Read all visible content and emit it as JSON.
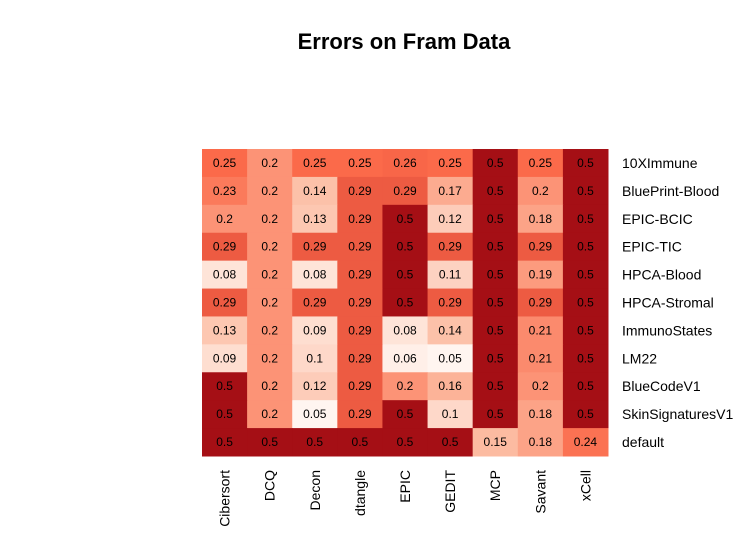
{
  "chart_data": {
    "type": "heatmap",
    "title": "Errors on Fram Data",
    "columns": [
      "Cibersort",
      "DCQ",
      "Decon",
      "dtangle",
      "EPIC",
      "GEDIT",
      "MCP",
      "Savant",
      "xCell"
    ],
    "rows": [
      "10XImmune",
      "BluePrint-Blood",
      "EPIC-BCIC",
      "EPIC-TIC",
      "HPCA-Blood",
      "HPCA-Stromal",
      "ImmunoStates",
      "LM22",
      "BlueCodeV1",
      "SkinSignaturesV1",
      "default"
    ],
    "values": [
      [
        0.25,
        0.2,
        0.25,
        0.25,
        0.26,
        0.25,
        0.5,
        0.25,
        0.5
      ],
      [
        0.23,
        0.2,
        0.14,
        0.29,
        0.29,
        0.17,
        0.5,
        0.2,
        0.5
      ],
      [
        0.2,
        0.2,
        0.13,
        0.29,
        0.5,
        0.12,
        0.5,
        0.18,
        0.5
      ],
      [
        0.29,
        0.2,
        0.29,
        0.29,
        0.5,
        0.29,
        0.5,
        0.29,
        0.5
      ],
      [
        0.08,
        0.2,
        0.08,
        0.29,
        0.5,
        0.11,
        0.5,
        0.19,
        0.5
      ],
      [
        0.29,
        0.2,
        0.29,
        0.29,
        0.5,
        0.29,
        0.5,
        0.29,
        0.5
      ],
      [
        0.13,
        0.2,
        0.09,
        0.29,
        0.08,
        0.14,
        0.5,
        0.21,
        0.5
      ],
      [
        0.09,
        0.2,
        0.1,
        0.29,
        0.06,
        0.05,
        0.5,
        0.21,
        0.5
      ],
      [
        0.5,
        0.2,
        0.12,
        0.29,
        0.2,
        0.16,
        0.5,
        0.2,
        0.5
      ],
      [
        0.5,
        0.2,
        0.05,
        0.29,
        0.5,
        0.1,
        0.5,
        0.18,
        0.5
      ],
      [
        0.5,
        0.5,
        0.5,
        0.5,
        0.5,
        0.5,
        0.15,
        0.18,
        0.24
      ]
    ],
    "value_labels": [
      [
        "0.25",
        "0.2",
        "0.25",
        "0.25",
        "0.26",
        "0.25",
        "0.5",
        "0.25",
        "0.5"
      ],
      [
        "0.23",
        "0.2",
        "0.14",
        "0.29",
        "0.29",
        "0.17",
        "0.5",
        "0.2",
        "0.5"
      ],
      [
        "0.2",
        "0.2",
        "0.13",
        "0.29",
        "0.5",
        "0.12",
        "0.5",
        "0.18",
        "0.5"
      ],
      [
        "0.29",
        "0.2",
        "0.29",
        "0.29",
        "0.5",
        "0.29",
        "0.5",
        "0.29",
        "0.5"
      ],
      [
        "0.08",
        "0.2",
        "0.08",
        "0.29",
        "0.5",
        "0.11",
        "0.5",
        "0.19",
        "0.5"
      ],
      [
        "0.29",
        "0.2",
        "0.29",
        "0.29",
        "0.5",
        "0.29",
        "0.5",
        "0.29",
        "0.5"
      ],
      [
        "0.13",
        "0.2",
        "0.09",
        "0.29",
        "0.08",
        "0.14",
        "0.5",
        "0.21",
        "0.5"
      ],
      [
        "0.09",
        "0.2",
        "0.1",
        "0.29",
        "0.06",
        "0.05",
        "0.5",
        "0.21",
        "0.5"
      ],
      [
        "0.5",
        "0.2",
        "0.12",
        "0.29",
        "0.2",
        "0.16",
        "0.5",
        "0.2",
        "0.5"
      ],
      [
        "0.5",
        "0.2",
        "0.05",
        "0.29",
        "0.5",
        "0.1",
        "0.5",
        "0.18",
        "0.5"
      ],
      [
        "0.5",
        "0.5",
        "0.5",
        "0.5",
        "0.5",
        "0.5",
        "0.15",
        "0.18",
        "0.24"
      ]
    ],
    "color_scale": {
      "stops": [
        {
          "value": 0.05,
          "color": "#fff5f0"
        },
        {
          "value": 0.15,
          "color": "#fcbba1"
        },
        {
          "value": 0.25,
          "color": "#fb6a4a"
        },
        {
          "value": 0.5,
          "color": "#a50f15"
        }
      ]
    },
    "legend": "none",
    "grid": false
  }
}
